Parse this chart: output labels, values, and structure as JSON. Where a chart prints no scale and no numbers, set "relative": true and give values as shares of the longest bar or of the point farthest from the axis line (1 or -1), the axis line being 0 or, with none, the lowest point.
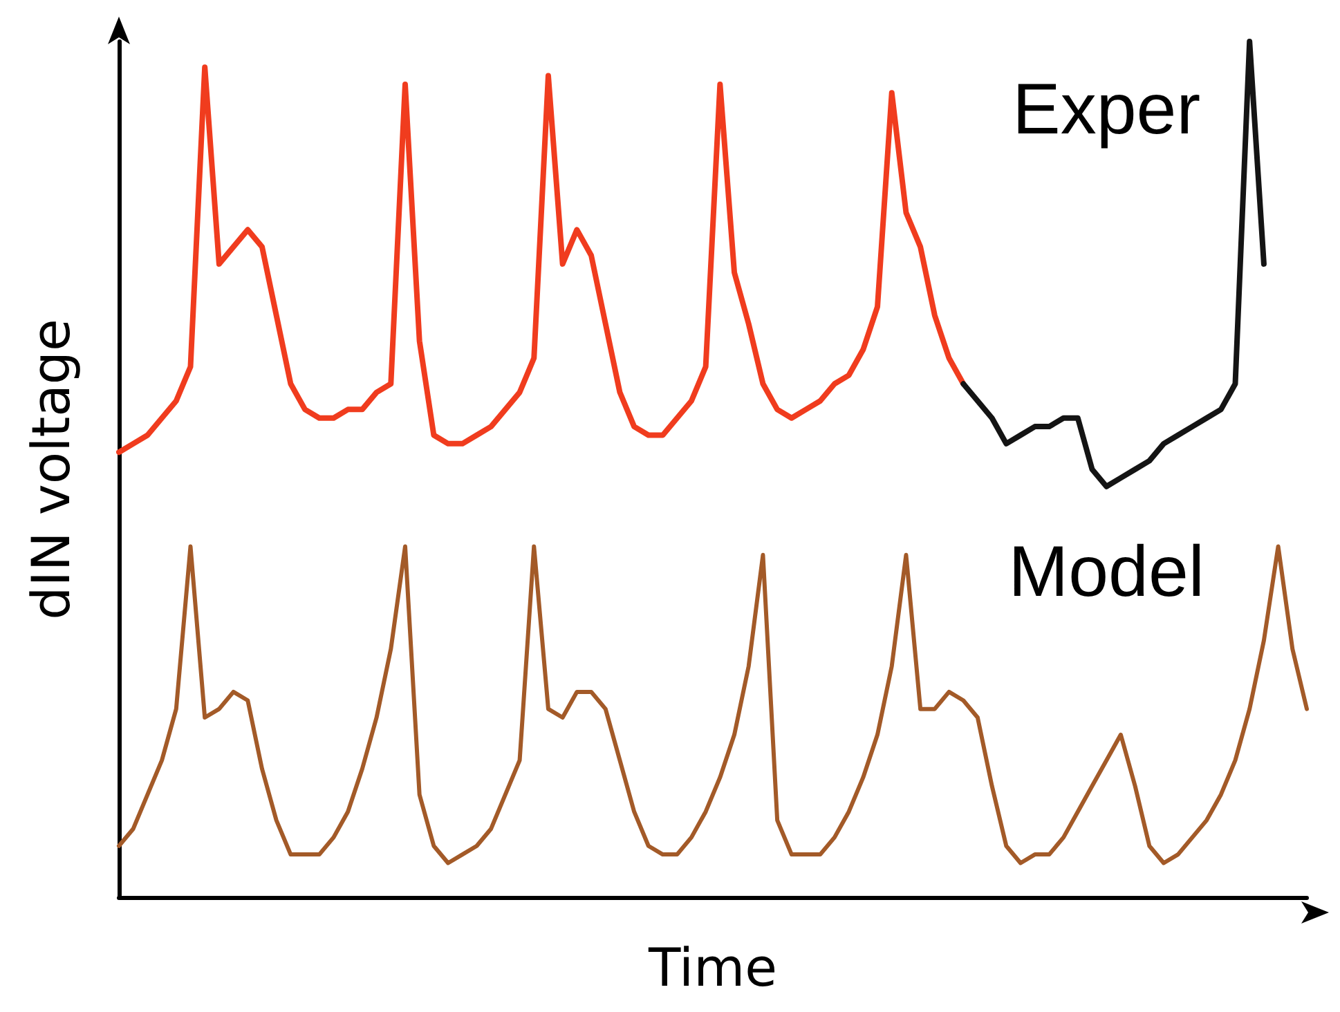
{
  "chart_data": {
    "type": "line",
    "relative": true,
    "xlabel": "Time",
    "ylabel": "dIN voltage",
    "grid": false,
    "legend": false,
    "marker": "none",
    "line_style": "solid",
    "categories": [
      null,
      null,
      null,
      null,
      null,
      null,
      null,
      null,
      null,
      null,
      null,
      null,
      null,
      null,
      null,
      null,
      null,
      null,
      null,
      null,
      null,
      null,
      null,
      null,
      null,
      null,
      null,
      null,
      null,
      null,
      null,
      null,
      null,
      null,
      null,
      null,
      null,
      null,
      null,
      null,
      null,
      null,
      null,
      null,
      null,
      null,
      null,
      null,
      null,
      null,
      null,
      null,
      null,
      null,
      null,
      null,
      null,
      null,
      null,
      null,
      null,
      null,
      null,
      null,
      null,
      null,
      null,
      null,
      null,
      null,
      null,
      null,
      null,
      null,
      null,
      null,
      null,
      null,
      null,
      null,
      null,
      null,
      null,
      null
    ],
    "series": [
      {
        "name": "Exper",
        "color": "#f03c1e",
        "values": [
          0.52,
          0.53,
          0.54,
          0.56,
          0.58,
          0.62,
          0.97,
          0.74,
          0.76,
          0.78,
          0.76,
          0.68,
          0.6,
          0.57,
          0.56,
          0.56,
          0.57,
          0.57,
          0.59,
          0.6,
          0.95,
          0.65,
          0.54,
          0.53,
          0.53,
          0.54,
          0.55,
          0.57,
          0.59,
          0.63,
          0.96,
          0.74,
          0.78,
          0.75,
          0.67,
          0.59,
          0.55,
          0.54,
          0.54,
          0.56,
          0.58,
          0.62,
          0.95,
          0.73,
          0.67,
          0.6,
          0.57,
          0.56,
          0.57,
          0.58,
          0.6,
          0.61,
          0.64,
          0.69,
          0.94,
          0.8,
          0.76,
          0.68,
          0.63,
          0.6,
          null,
          null,
          null,
          null,
          null,
          null,
          null,
          null,
          null,
          null,
          null,
          null,
          null,
          null,
          null,
          null,
          null,
          null,
          null,
          null,
          null,
          null,
          null,
          null
        ]
      },
      {
        "color": "#141414",
        "values": [
          null,
          null,
          null,
          null,
          null,
          null,
          null,
          null,
          null,
          null,
          null,
          null,
          null,
          null,
          null,
          null,
          null,
          null,
          null,
          null,
          null,
          null,
          null,
          null,
          null,
          null,
          null,
          null,
          null,
          null,
          null,
          null,
          null,
          null,
          null,
          null,
          null,
          null,
          null,
          null,
          null,
          null,
          null,
          null,
          null,
          null,
          null,
          null,
          null,
          null,
          null,
          null,
          null,
          null,
          null,
          null,
          null,
          null,
          null,
          0.6,
          0.58,
          0.56,
          0.53,
          0.54,
          0.55,
          0.55,
          0.56,
          0.56,
          0.5,
          0.48,
          0.49,
          0.5,
          0.51,
          0.53,
          0.54,
          0.55,
          0.56,
          0.57,
          0.6,
          1.0,
          0.74,
          null,
          null,
          null
        ]
      },
      {
        "name": "Model",
        "color": "#a35a28",
        "values": [
          0.06,
          0.08,
          0.12,
          0.16,
          0.22,
          0.41,
          0.21,
          0.22,
          0.24,
          0.23,
          0.15,
          0.09,
          0.05,
          0.05,
          0.05,
          0.07,
          0.1,
          0.15,
          0.21,
          0.29,
          0.41,
          0.12,
          0.06,
          0.04,
          0.05,
          0.06,
          0.08,
          0.12,
          0.16,
          0.41,
          0.22,
          0.21,
          0.24,
          0.24,
          0.22,
          0.16,
          0.1,
          0.06,
          0.05,
          0.05,
          0.07,
          0.1,
          0.14,
          0.19,
          0.27,
          0.4,
          0.09,
          0.05,
          0.05,
          0.05,
          0.07,
          0.1,
          0.14,
          0.19,
          0.27,
          0.4,
          0.22,
          0.22,
          0.24,
          0.23,
          0.21,
          0.13,
          0.06,
          0.04,
          0.05,
          0.05,
          0.07,
          0.1,
          0.13,
          0.16,
          0.19,
          0.13,
          0.06,
          0.04,
          0.05,
          0.07,
          0.09,
          0.12,
          0.16,
          0.22,
          0.3,
          0.41,
          0.29,
          0.22
        ]
      }
    ]
  }
}
